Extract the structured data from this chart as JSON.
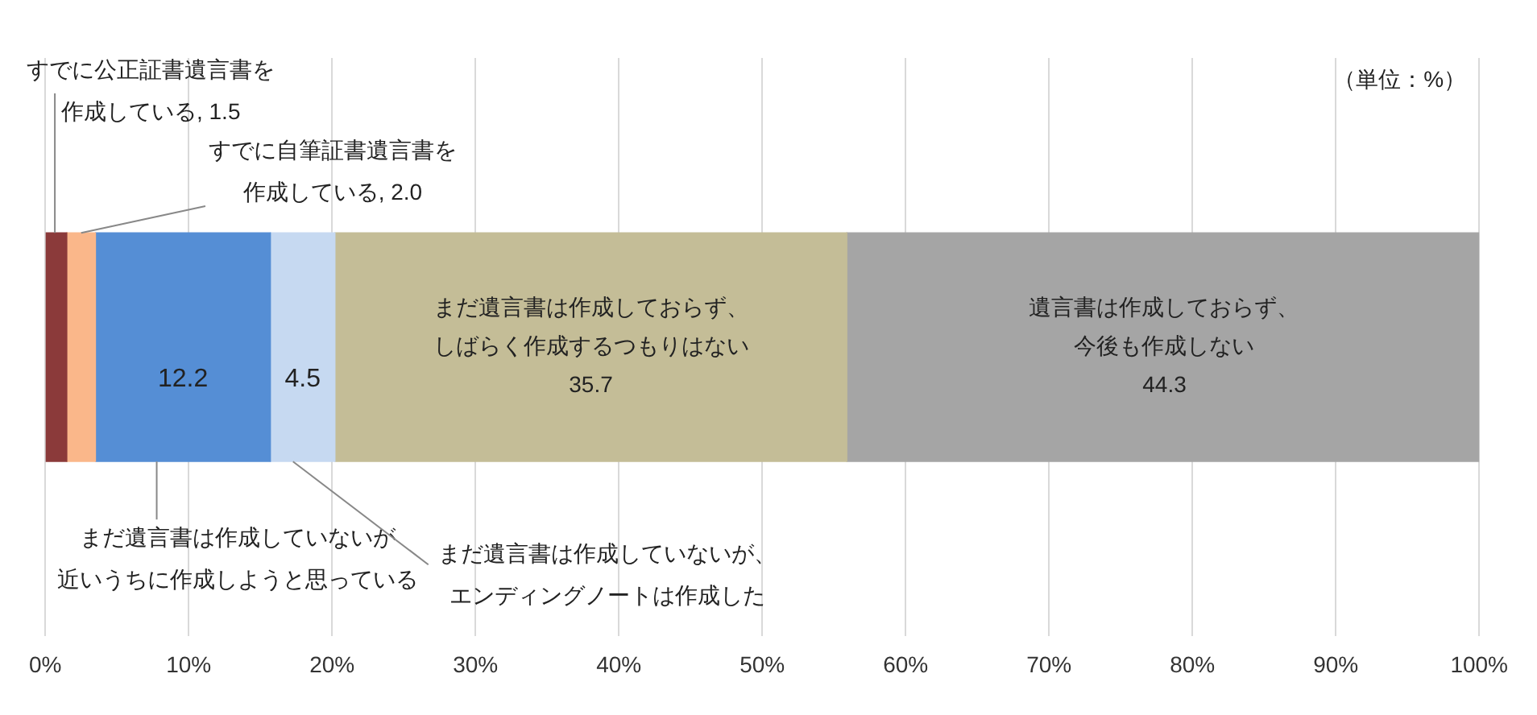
{
  "chart_data": {
    "type": "bar",
    "orientation": "horizontal",
    "stacked": true,
    "categories": [
      null
    ],
    "series": [
      {
        "name": "すでに公正証書遺言書を作成している,",
        "color": "#8b3a3a",
        "values": [
          1.5
        ],
        "value_labels": [
          "1.5"
        ]
      },
      {
        "name": "すでに自筆証書遺言書を作成している,",
        "color": "#fab78a",
        "values": [
          2.0
        ],
        "value_labels": [
          "2.0"
        ]
      },
      {
        "name": "まだ遺言書は作成していないが近いうちに作成しようと思っている",
        "color": "#558ed5",
        "values": [
          12.2
        ],
        "value_labels": [
          "12.2"
        ]
      },
      {
        "name": "まだ遺言書は作成していないが、エンディングノートは作成した",
        "color": "#c6d9f1",
        "values": [
          4.5
        ],
        "value_labels": [
          "4.5"
        ]
      },
      {
        "name": "まだ遺言書は作成しておらず、しばらく作成するつもりはない",
        "color": "#c4bd97",
        "values": [
          35.7
        ],
        "value_labels": [
          "35.7"
        ]
      },
      {
        "name": "遺言書は作成しておらず、今後も作成しない",
        "color": "#a5a5a5",
        "values": [
          44.3
        ],
        "value_labels": [
          "44.3"
        ]
      }
    ],
    "xlim": [
      0,
      100
    ],
    "xticks": [
      {
        "value": 0,
        "label": "0%"
      },
      {
        "value": 10,
        "label": "10%"
      },
      {
        "value": 20,
        "label": "20%"
      },
      {
        "value": 30,
        "label": "30%"
      },
      {
        "value": 40,
        "label": "40%"
      },
      {
        "value": 50,
        "label": "50%"
      },
      {
        "value": 60,
        "label": "60%"
      },
      {
        "value": 70,
        "label": "70%"
      },
      {
        "value": 80,
        "label": "80%"
      },
      {
        "value": 90,
        "label": "90%"
      },
      {
        "value": 100,
        "label": "100%"
      }
    ],
    "grid": "x",
    "legend": false,
    "tick_labels": "x",
    "annotations": [
      "（単位：%）"
    ]
  }
}
